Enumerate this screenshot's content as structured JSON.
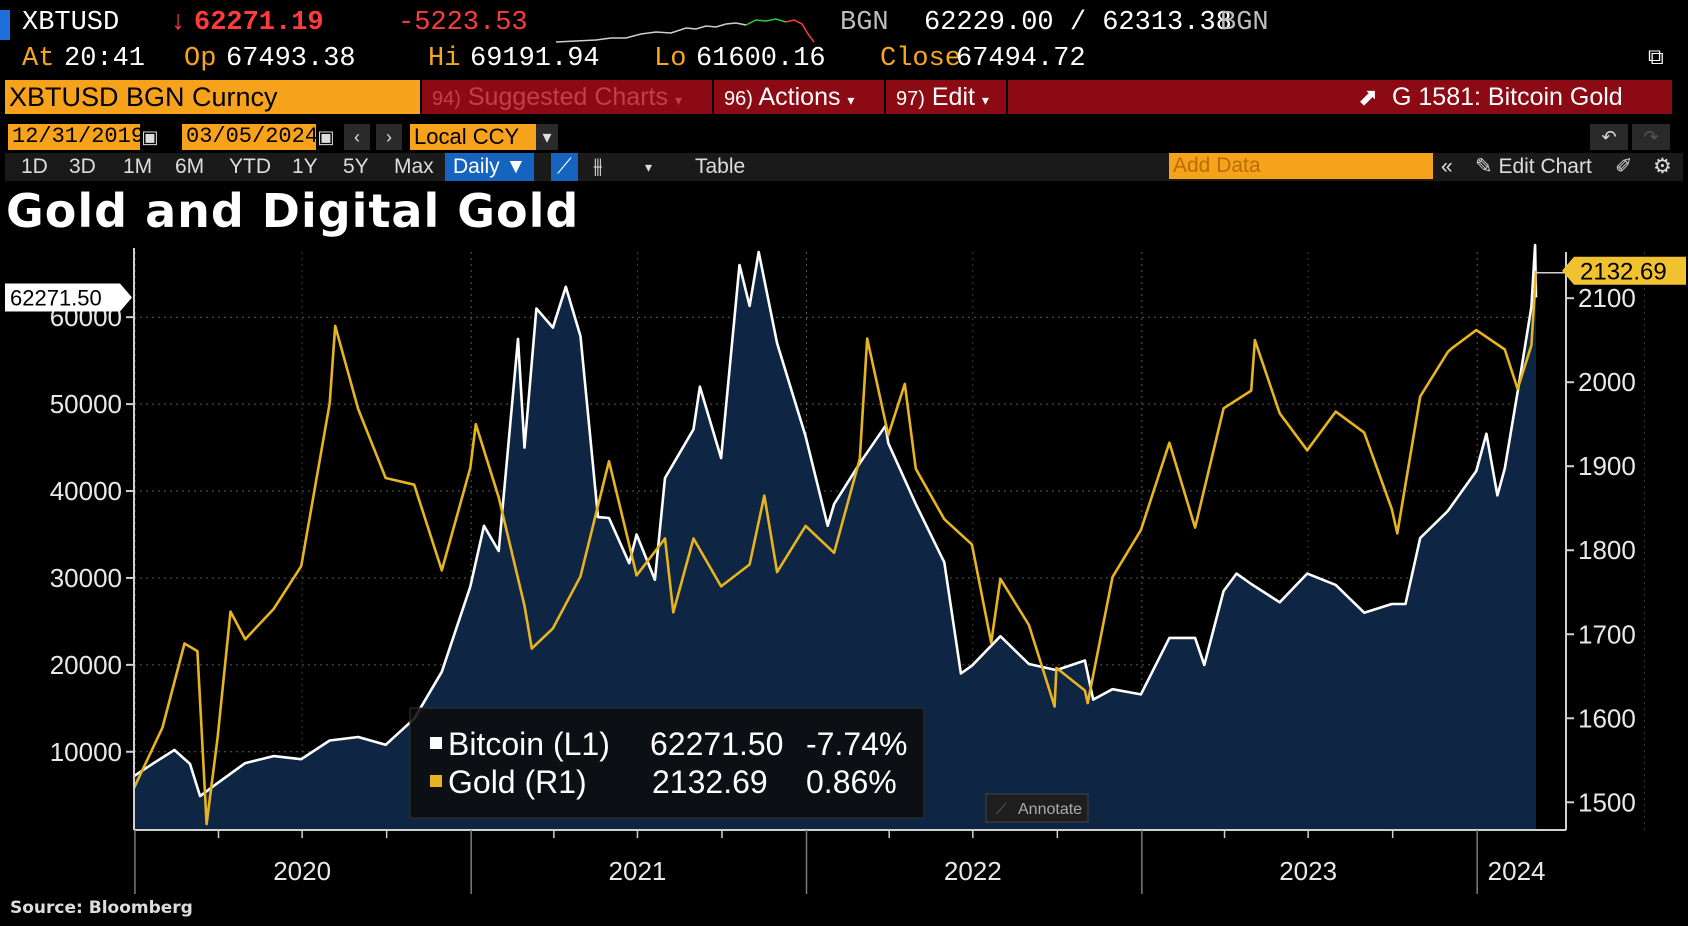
{
  "ticker": {
    "symbol": "XBTUSD",
    "arrow": "↓",
    "last": "62271.19",
    "change": "-5223.53",
    "source1": "BGN",
    "bid_ask": "62229.00 / 62313.38",
    "source2": "BGN",
    "at_label": "At",
    "at_time": "20:41",
    "op_label": "Op",
    "op_value": "67493.38",
    "hi_label": "Hi",
    "hi_value": "69191.94",
    "lo_label": "Lo",
    "lo_value": "61600.16",
    "close_label": "Close",
    "close_value": "67494.72"
  },
  "toolbar": {
    "security": "XBTUSD BGN Curncy",
    "menu_suggested_num": "94)",
    "menu_suggested": "Suggested Charts",
    "menu_actions_num": "96)",
    "menu_actions": "Actions",
    "menu_edit_num": "97)",
    "menu_edit": "Edit",
    "chart_id": "G 1581: Bitcoin Gold"
  },
  "dates": {
    "start": "12/31/2019",
    "end": "03/05/2024",
    "currency": "Local CCY"
  },
  "ranges": [
    "1D",
    "3D",
    "1M",
    "6M",
    "YTD",
    "1Y",
    "5Y",
    "Max"
  ],
  "frequency": "Daily",
  "table_label": "Table",
  "add_data_placeholder": "Add Data",
  "edit_chart_label": "Edit Chart",
  "annotate_label": "Annotate",
  "title": "Gold and Digital Gold",
  "source": "Source: Bloomberg",
  "colors": {
    "bitcoin": "#ffffff",
    "gold": "#e6b41e",
    "area": "#0f2544",
    "background": "#000000",
    "accent": "#f7a21b",
    "menu_red": "#8b0a14"
  },
  "chart_data": {
    "type": "line",
    "title": "Gold and Digital Gold",
    "x_ticks": [
      "2020",
      "2021",
      "2022",
      "2023",
      "2024"
    ],
    "left_axis": {
      "ticks": [
        10000,
        20000,
        30000,
        40000,
        50000,
        60000
      ],
      "ylim": [
        1000,
        67500
      ]
    },
    "right_axis": {
      "ticks": [
        1500,
        1600,
        1700,
        1800,
        1900,
        2000,
        2100
      ],
      "ylim": [
        1467,
        2155
      ]
    },
    "xlim": [
      "2019-12-31",
      "2024-03-05"
    ],
    "grid": true,
    "legend_position": "bottom-left",
    "series": [
      {
        "name": "Bitcoin (L1)",
        "axis": "left",
        "last_value": "62271.50",
        "change_pct": "-7.74%",
        "style": "area",
        "points": [
          [
            "2019-12-31",
            7200
          ],
          [
            "2020-01-20",
            8600
          ],
          [
            "2020-02-13",
            10200
          ],
          [
            "2020-03-01",
            8600
          ],
          [
            "2020-03-12",
            4900
          ],
          [
            "2020-03-31",
            6400
          ],
          [
            "2020-04-30",
            8700
          ],
          [
            "2020-05-31",
            9500
          ],
          [
            "2020-06-30",
            9150
          ],
          [
            "2020-07-31",
            11300
          ],
          [
            "2020-08-31",
            11700
          ],
          [
            "2020-09-30",
            10800
          ],
          [
            "2020-10-31",
            13800
          ],
          [
            "2020-11-30",
            19200
          ],
          [
            "2020-12-31",
            29000
          ],
          [
            "2021-01-15",
            36000
          ],
          [
            "2021-01-31",
            33100
          ],
          [
            "2021-02-21",
            57500
          ],
          [
            "2021-02-28",
            45000
          ],
          [
            "2021-03-13",
            61000
          ],
          [
            "2021-03-31",
            58800
          ],
          [
            "2021-04-14",
            63500
          ],
          [
            "2021-04-30",
            57800
          ],
          [
            "2021-05-19",
            37000
          ],
          [
            "2021-05-31",
            36900
          ],
          [
            "2021-06-22",
            31700
          ],
          [
            "2021-06-30",
            35000
          ],
          [
            "2021-07-20",
            29800
          ],
          [
            "2021-07-31",
            41500
          ],
          [
            "2021-08-31",
            47100
          ],
          [
            "2021-09-07",
            52000
          ],
          [
            "2021-09-30",
            43800
          ],
          [
            "2021-10-20",
            66000
          ],
          [
            "2021-10-31",
            61300
          ],
          [
            "2021-11-10",
            67500
          ],
          [
            "2021-11-30",
            57000
          ],
          [
            "2021-12-31",
            46300
          ],
          [
            "2022-01-24",
            36000
          ],
          [
            "2022-01-31",
            38500
          ],
          [
            "2022-02-28",
            43200
          ],
          [
            "2022-03-28",
            47500
          ],
          [
            "2022-03-31",
            45500
          ],
          [
            "2022-04-30",
            38500
          ],
          [
            "2022-05-31",
            31800
          ],
          [
            "2022-06-18",
            19000
          ],
          [
            "2022-06-30",
            19900
          ],
          [
            "2022-07-31",
            23300
          ],
          [
            "2022-08-31",
            20100
          ],
          [
            "2022-09-30",
            19400
          ],
          [
            "2022-10-31",
            20500
          ],
          [
            "2022-11-09",
            16000
          ],
          [
            "2022-11-30",
            17200
          ],
          [
            "2022-12-31",
            16600
          ],
          [
            "2023-01-31",
            23100
          ],
          [
            "2023-02-28",
            23100
          ],
          [
            "2023-03-10",
            20000
          ],
          [
            "2023-03-31",
            28500
          ],
          [
            "2023-04-14",
            30500
          ],
          [
            "2023-04-30",
            29300
          ],
          [
            "2023-05-31",
            27200
          ],
          [
            "2023-06-30",
            30500
          ],
          [
            "2023-07-31",
            29200
          ],
          [
            "2023-08-31",
            26000
          ],
          [
            "2023-09-30",
            27000
          ],
          [
            "2023-10-15",
            27000
          ],
          [
            "2023-10-31",
            34600
          ],
          [
            "2023-11-30",
            37700
          ],
          [
            "2023-12-31",
            42300
          ],
          [
            "2024-01-11",
            46600
          ],
          [
            "2024-01-23",
            39500
          ],
          [
            "2024-01-31",
            42600
          ],
          [
            "2024-02-15",
            52000
          ],
          [
            "2024-02-29",
            61200
          ],
          [
            "2024-03-04",
            68300
          ],
          [
            "2024-03-05",
            62271.5
          ]
        ]
      },
      {
        "name": "Gold (R1)",
        "axis": "right",
        "last_value": "2132.69",
        "change_pct": "0.86%",
        "style": "line",
        "points": [
          [
            "2019-12-31",
            1517
          ],
          [
            "2020-01-31",
            1589
          ],
          [
            "2020-02-24",
            1689
          ],
          [
            "2020-03-09",
            1680
          ],
          [
            "2020-03-19",
            1474
          ],
          [
            "2020-03-31",
            1577
          ],
          [
            "2020-04-14",
            1727
          ],
          [
            "2020-04-30",
            1694
          ],
          [
            "2020-05-31",
            1730
          ],
          [
            "2020-06-30",
            1781
          ],
          [
            "2020-07-31",
            1975
          ],
          [
            "2020-08-06",
            2067
          ],
          [
            "2020-08-31",
            1968
          ],
          [
            "2020-09-30",
            1886
          ],
          [
            "2020-10-31",
            1878
          ],
          [
            "2020-11-30",
            1776
          ],
          [
            "2020-12-31",
            1898
          ],
          [
            "2021-01-06",
            1950
          ],
          [
            "2021-01-31",
            1863
          ],
          [
            "2021-02-28",
            1734
          ],
          [
            "2021-03-08",
            1683
          ],
          [
            "2021-03-31",
            1707
          ],
          [
            "2021-04-30",
            1769
          ],
          [
            "2021-05-31",
            1906
          ],
          [
            "2021-06-30",
            1770
          ],
          [
            "2021-07-31",
            1814
          ],
          [
            "2021-08-09",
            1726
          ],
          [
            "2021-08-31",
            1814
          ],
          [
            "2021-09-30",
            1757
          ],
          [
            "2021-10-31",
            1783
          ],
          [
            "2021-11-16",
            1865
          ],
          [
            "2021-11-30",
            1774
          ],
          [
            "2021-12-31",
            1829
          ],
          [
            "2022-01-31",
            1797
          ],
          [
            "2022-02-28",
            1909
          ],
          [
            "2022-03-08",
            2052
          ],
          [
            "2022-03-31",
            1937
          ],
          [
            "2022-04-18",
            1998
          ],
          [
            "2022-04-30",
            1897
          ],
          [
            "2022-05-31",
            1837
          ],
          [
            "2022-06-30",
            1807
          ],
          [
            "2022-07-21",
            1690
          ],
          [
            "2022-07-31",
            1766
          ],
          [
            "2022-08-31",
            1711
          ],
          [
            "2022-09-28",
            1614
          ],
          [
            "2022-09-30",
            1660
          ],
          [
            "2022-10-31",
            1633
          ],
          [
            "2022-11-03",
            1618
          ],
          [
            "2022-11-30",
            1768
          ],
          [
            "2022-12-31",
            1824
          ],
          [
            "2023-01-31",
            1928
          ],
          [
            "2023-02-28",
            1827
          ],
          [
            "2023-03-31",
            1969
          ],
          [
            "2023-04-30",
            1990
          ],
          [
            "2023-05-04",
            2050
          ],
          [
            "2023-05-31",
            1963
          ],
          [
            "2023-06-30",
            1919
          ],
          [
            "2023-07-31",
            1965
          ],
          [
            "2023-08-31",
            1940
          ],
          [
            "2023-09-30",
            1849
          ],
          [
            "2023-10-06",
            1820
          ],
          [
            "2023-10-31",
            1983
          ],
          [
            "2023-11-30",
            2036
          ],
          [
            "2023-12-04",
            2040
          ],
          [
            "2023-12-31",
            2062
          ],
          [
            "2024-01-31",
            2039
          ],
          [
            "2024-02-14",
            1992
          ],
          [
            "2024-02-29",
            2044
          ],
          [
            "2024-03-04",
            2114
          ],
          [
            "2024-03-05",
            2132.69
          ]
        ]
      }
    ]
  }
}
